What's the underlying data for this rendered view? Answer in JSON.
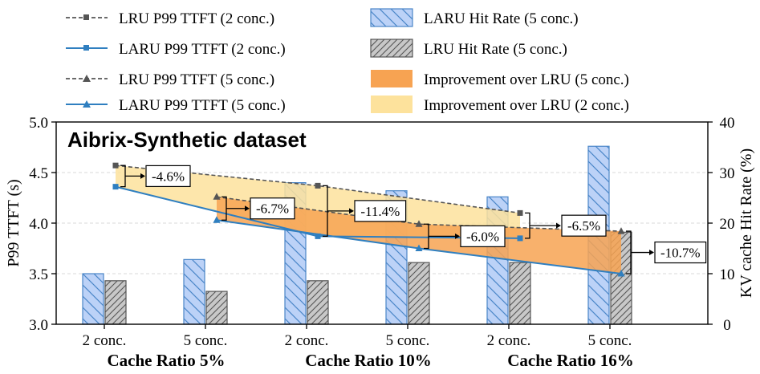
{
  "chart_data": {
    "type": "bar",
    "title": "Aibrix-Synthetic dataset",
    "categories": [
      "2 conc.",
      "5 conc.",
      "2 conc.",
      "5 conc.",
      "2 conc.",
      "5 conc."
    ],
    "group_labels": [
      "Cache Ratio 5%",
      "Cache Ratio 10%",
      "Cache Ratio 16%"
    ],
    "ylabel_left": "P99 TTFT (s)",
    "ylabel_right": "KV cache Hit Rate (%)",
    "ylim_left": [
      3.0,
      5.0
    ],
    "ylim_right": [
      0,
      40
    ],
    "yticks_left": [
      "3.0",
      "3.5",
      "4.0",
      "4.5",
      "5.0"
    ],
    "yticks_right": [
      "0",
      "10",
      "20",
      "30",
      "40"
    ],
    "bars": [
      {
        "name": "LARU Hit Rate (5 conc.)",
        "values": [
          10,
          12.8,
          28,
          26.4,
          25.2,
          35.2
        ]
      },
      {
        "name": "LRU Hit Rate (5 conc.)",
        "values": [
          8.6,
          6.5,
          8.6,
          12.2,
          12.2,
          18.2
        ]
      }
    ],
    "lines": [
      {
        "name": "LRU P99 TTFT (2 conc.)",
        "values": [
          4.57,
          4.37,
          4.1
        ],
        "positions": [
          0,
          2,
          4
        ]
      },
      {
        "name": "LARU P99 TTFT (2 conc.)",
        "values": [
          4.36,
          3.87,
          3.85
        ],
        "positions": [
          0,
          2,
          4
        ]
      },
      {
        "name": "LRU P99 TTFT (5 conc.)",
        "values": [
          4.26,
          3.99,
          3.92
        ],
        "positions": [
          1,
          3,
          5
        ]
      },
      {
        "name": "LARU P99 TTFT (5 conc.)",
        "values": [
          4.03,
          3.75,
          3.5
        ],
        "positions": [
          1,
          3,
          5
        ]
      }
    ],
    "bands": [
      {
        "name": "Improvement over LRU (5 conc.)",
        "upper": "LRU P99 TTFT (5 conc.)",
        "lower": "LARU P99 TTFT (5 conc.)"
      },
      {
        "name": "Improvement over LRU (2 conc.)",
        "upper": "LRU P99 TTFT (2 conc.)",
        "lower": "LARU P99 TTFT (2 conc.)"
      }
    ],
    "annotations": [
      {
        "text": "-4.6%",
        "position": 0
      },
      {
        "text": "-6.7%",
        "position": 1
      },
      {
        "text": "-11.4%",
        "position": 2
      },
      {
        "text": "-6.0%",
        "position": 3
      },
      {
        "text": "-6.5%",
        "position": 4
      },
      {
        "text": "-10.7%",
        "position": 5
      }
    ],
    "legend": [
      "LRU P99 TTFT (2 conc.)",
      "LARU P99 TTFT (2 conc.)",
      "LRU P99 TTFT (5 conc.)",
      "LARU P99 TTFT (5 conc.)",
      "LARU Hit Rate (5 conc.)",
      "LRU Hit Rate (5 conc.)",
      "Improvement over LRU (5 conc.)",
      "Improvement over LRU (2 conc.)"
    ],
    "colors": {
      "laru_bar": "#bcd2f7",
      "laru_bar_edge": "#4a86c8",
      "lru_bar": "#c8c8c8",
      "lru_bar_edge": "#555555",
      "lru_line": "#555555",
      "laru_line": "#2f7fc0",
      "band_5": "#f7a352",
      "band_2": "#fde29c"
    }
  }
}
